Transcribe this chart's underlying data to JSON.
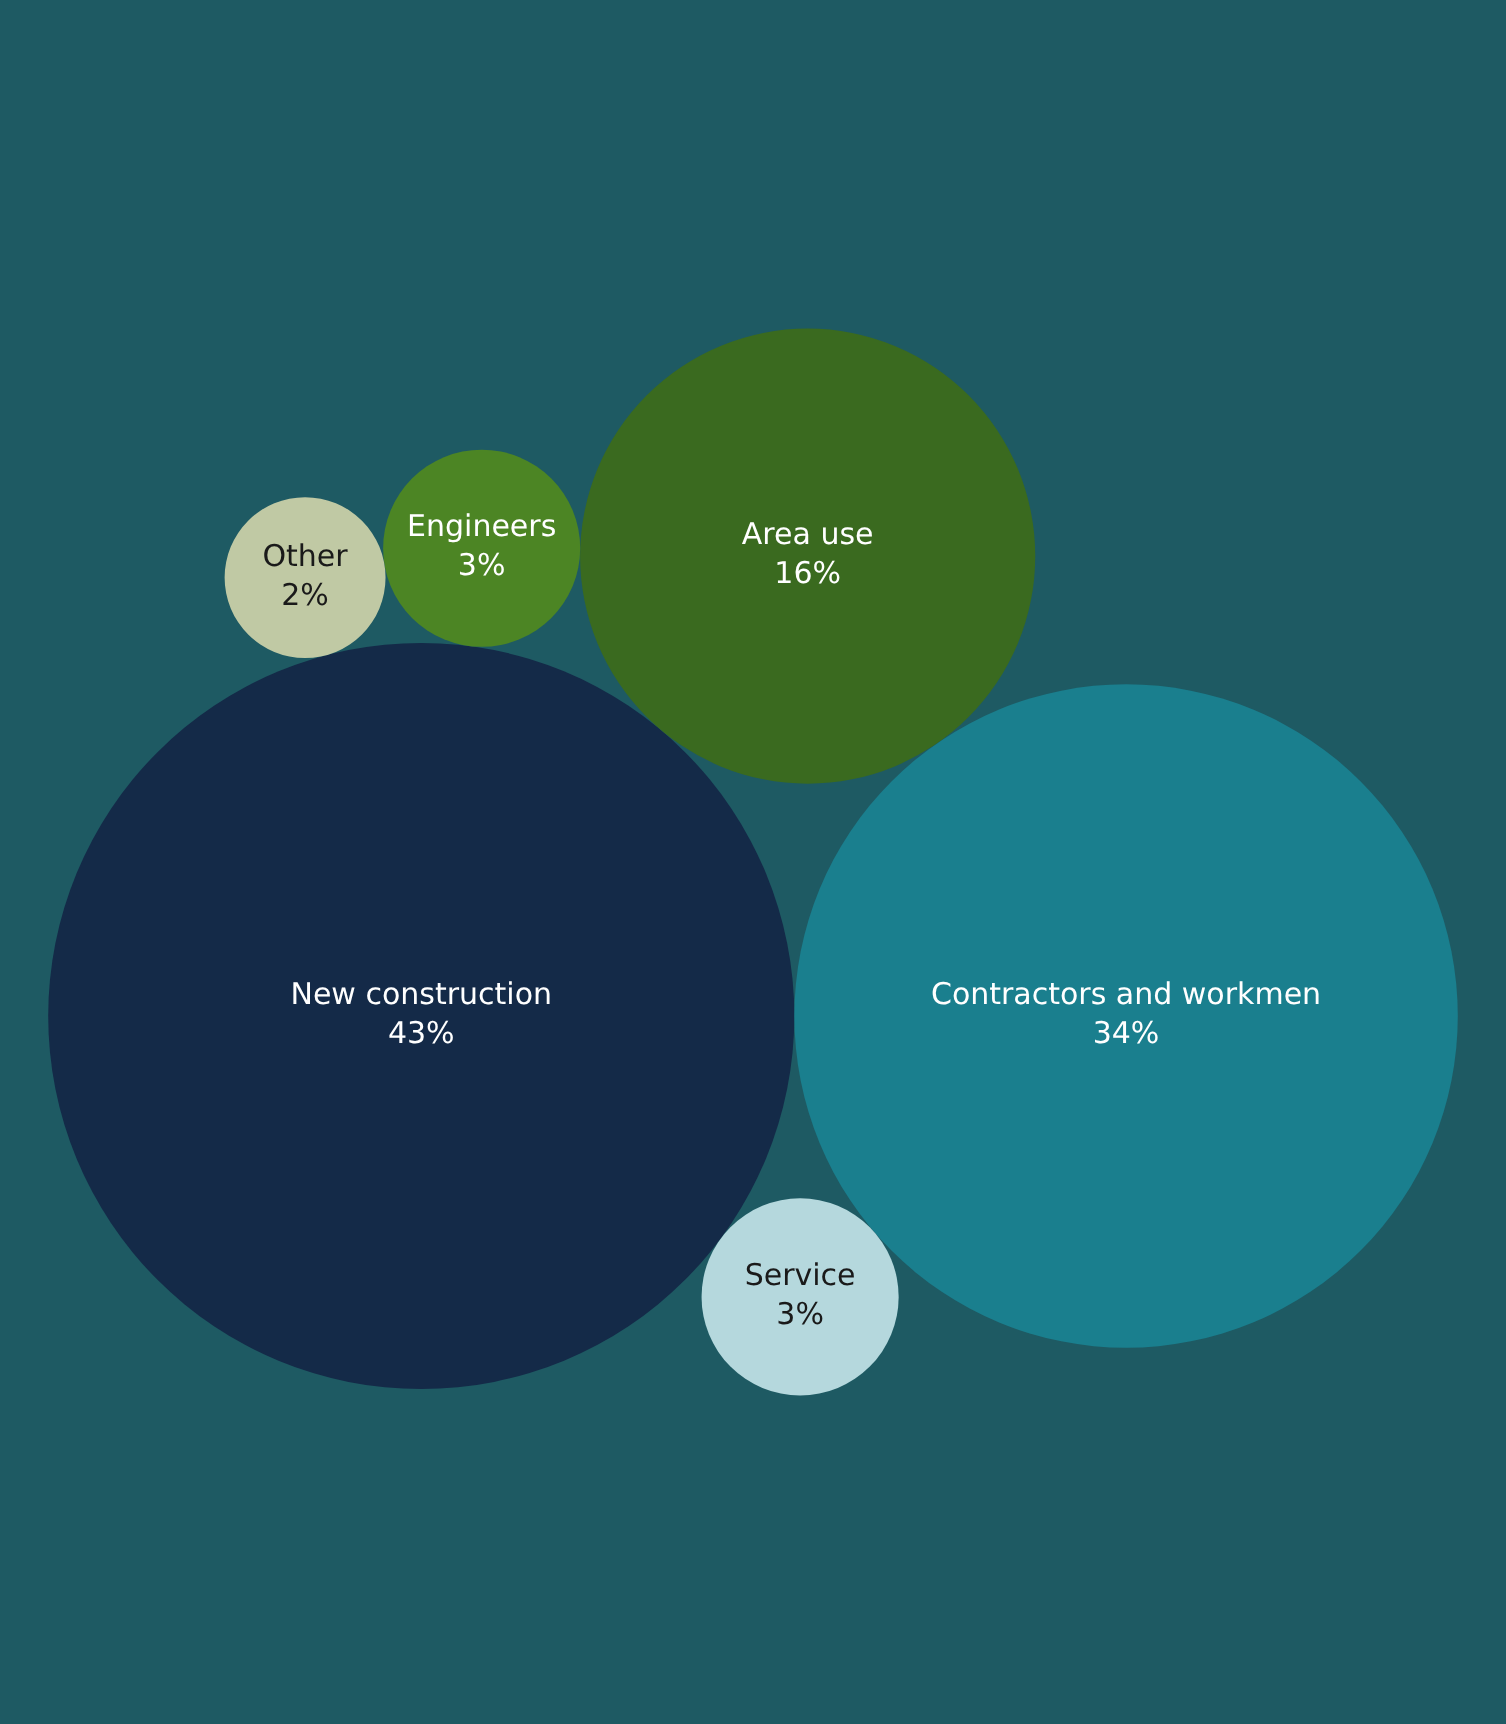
{
  "chart_data": {
    "type": "other",
    "categories": [
      "New construction",
      "Contractors and workmen",
      "Area use",
      "Service",
      "Engineers",
      "Other"
    ],
    "values": [
      43,
      34,
      16,
      3,
      3,
      2
    ],
    "value_labels": [
      "43%",
      "34%",
      "16%",
      "3%",
      "3%",
      "2%"
    ],
    "colors": [
      "#142a48",
      "#1a7f8e",
      "#3a6a1f",
      "#b5d8dd",
      "#4c8524",
      "#c0c9a4"
    ]
  }
}
